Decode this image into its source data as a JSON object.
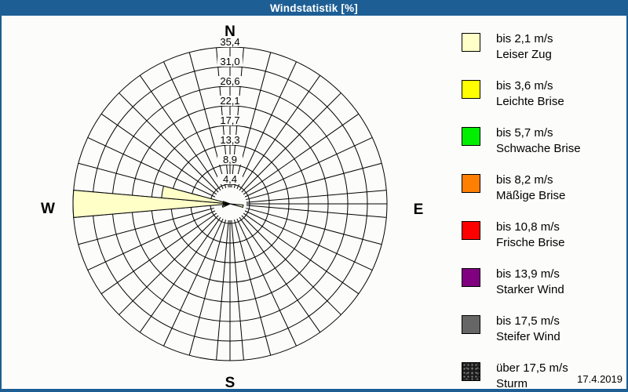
{
  "header": {
    "title": "Windstatistik [%]"
  },
  "footer": {
    "date": "17.4.2019"
  },
  "colors": {
    "titlebar": "#1D5E94",
    "background": "#FCFDFB",
    "grid": "#000000"
  },
  "chart_data": {
    "type": "windrose",
    "title": "Windstatistik [%]",
    "units": "%",
    "direction_labels": [
      "N",
      "E",
      "S",
      "W"
    ],
    "sector_count": 36,
    "sector_width_deg": 10,
    "rings": 8,
    "max_value": 35.4,
    "ring_values": [
      4.4,
      8.9,
      13.3,
      17.7,
      22.1,
      26.6,
      31.0,
      35.4
    ],
    "ring_labels": [
      "4,4",
      "8,9",
      "13,3",
      "17,7",
      "22,1",
      "26,6",
      "31,0",
      "35,4"
    ],
    "petals": [
      {
        "direction_deg": 270,
        "value": 35.4,
        "class": "bis 2,1 m/s"
      },
      {
        "direction_deg": 280,
        "value": 15.5,
        "class": "bis 2,1 m/s"
      },
      {
        "direction_deg": 100,
        "value": 3.0,
        "class": "bis 2,1 m/s"
      },
      {
        "direction_deg": 250,
        "value": 1.8,
        "class": "bis 2,1 m/s"
      },
      {
        "direction_deg": 262,
        "value": 1.5,
        "class": "bis 3,6 m/s"
      },
      {
        "direction_deg": 286,
        "value": 1.6,
        "class": "bis 2,1 m/s"
      }
    ],
    "legend": [
      {
        "color": "#FFFFC8",
        "speed_label": "bis 2,1 m/s",
        "name_label": "Leiser Zug"
      },
      {
        "color": "#FFFF00",
        "speed_label": "bis 3,6 m/s",
        "name_label": "Leichte Brise"
      },
      {
        "color": "#00EE00",
        "speed_label": "bis 5,7 m/s",
        "name_label": "Schwache Brise"
      },
      {
        "color": "#FF8000",
        "speed_label": "bis 8,2 m/s",
        "name_label": "Mäßige Brise"
      },
      {
        "color": "#FF0000",
        "speed_label": "bis 10,8 m/s",
        "name_label": "Frische Brise"
      },
      {
        "color": "#800080",
        "speed_label": "bis 13,9 m/s",
        "name_label": "Starker Wind"
      },
      {
        "color": "#666666",
        "speed_label": "bis 17,5 m/s",
        "name_label": "Steifer Wind"
      },
      {
        "color": "#1C1C1C",
        "pattern": "dots",
        "speed_label": "über 17,5 m/s",
        "name_label": "Sturm"
      }
    ]
  }
}
